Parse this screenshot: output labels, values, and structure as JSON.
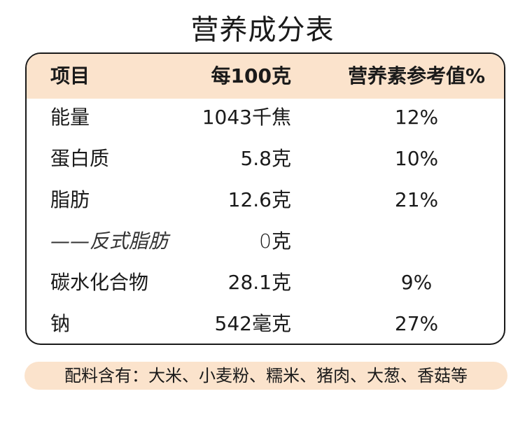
{
  "title": "营养成分表",
  "header": {
    "item": "项目",
    "amount": "每100克",
    "nrv": "营养素参考值%"
  },
  "rows": [
    {
      "item": "能量",
      "amount": "1043千焦",
      "nrv": "12%"
    },
    {
      "item": "蛋白质",
      "amount": "5.8克",
      "nrv": "10%"
    },
    {
      "item": "脂肪",
      "amount": "12.6克",
      "nrv": "21%"
    },
    {
      "item": "——反式脂肪",
      "amount": "0克",
      "nrv": ""
    },
    {
      "item": "碳水化合物",
      "amount": "28.1克",
      "nrv": "9%"
    },
    {
      "item": "钠",
      "amount": "542毫克",
      "nrv": "27%"
    }
  ],
  "ingredients": "配料含有：大米、小麦粉、糯米、猪肉、大葱、香菇等",
  "colors": {
    "header_bg": "#fbe3cc",
    "border": "#1a1a1a",
    "text": "#1a1a1a"
  }
}
